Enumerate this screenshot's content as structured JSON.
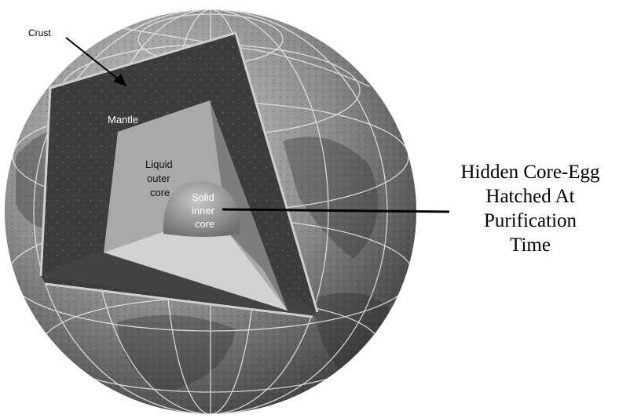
{
  "labels": {
    "crust": "Crust",
    "mantle": "Mantle",
    "outer_core": [
      "Liquid",
      "outer",
      "core"
    ],
    "inner_core": [
      "Solid",
      "inner",
      "core"
    ]
  },
  "caption": [
    "Hidden Core-Egg",
    "Hatched At",
    "Purification",
    "Time"
  ],
  "colors": {
    "globe": "#8f8f8f",
    "mantle": "#3c3c3c",
    "outer_core": "#aeaeae",
    "inner_core": "#8a8a8a",
    "grid": "#ececec"
  }
}
